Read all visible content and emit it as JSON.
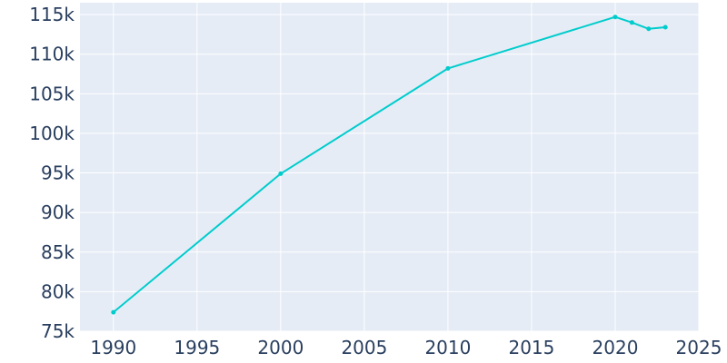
{
  "chart_data": {
    "type": "line",
    "title": "",
    "xlabel": "",
    "ylabel": "",
    "x": [
      1990,
      2000,
      2010,
      2020,
      2021,
      2022,
      2023
    ],
    "series": [
      {
        "values": [
          77400,
          94900,
          108200,
          114700,
          114000,
          113200,
          113400
        ]
      }
    ],
    "xlim": [
      1988,
      2025
    ],
    "ylim": [
      75000,
      116500
    ],
    "x_ticks": [
      1990,
      1995,
      2000,
      2005,
      2010,
      2015,
      2020,
      2025
    ],
    "x_tick_labels": [
      "1990",
      "1995",
      "2000",
      "2005",
      "2010",
      "2015",
      "2020",
      "2025"
    ],
    "y_ticks": [
      75000,
      80000,
      85000,
      90000,
      95000,
      100000,
      105000,
      110000,
      115000
    ],
    "y_tick_labels": [
      "75k",
      "80k",
      "85k",
      "90k",
      "95k",
      "100k",
      "105k",
      "110k",
      "115k"
    ],
    "grid": true,
    "legend": "none",
    "colors": {
      "line": "#00cccc",
      "plot_background": "#e5ecf6",
      "grid": "#ffffff",
      "tick_text": "#2a3f5f"
    }
  }
}
